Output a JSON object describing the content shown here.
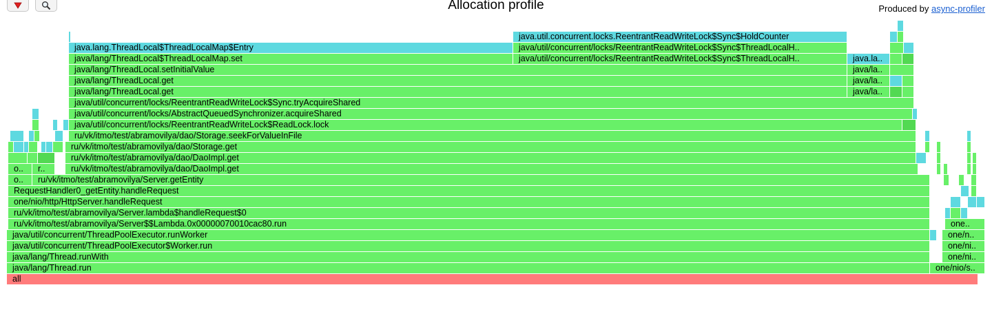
{
  "toolbar": {
    "reverse_icon": "red-triangle-down-icon",
    "search_icon": "magnifier-icon"
  },
  "title": "Allocation profile",
  "produced_by": {
    "prefix": "Produced by",
    "link_text": "async-profiler"
  },
  "colors": {
    "root": "#ff7b7b",
    "java": "#68f068",
    "java_dark": "#52d952",
    "alloc": "#5ed9e0"
  },
  "chart_data": {
    "type": "flamegraph",
    "title": "Allocation profile",
    "rows": [
      [
        [
          "all",
          0,
          1440,
          "root"
        ]
      ],
      [
        [
          "java/lang/Thread.run",
          10,
          1350,
          "java"
        ],
        [
          "one/nio/s..",
          1350,
          1430,
          "java"
        ]
      ],
      [
        [
          "java/lang/Thread.runWith",
          10,
          1350,
          "java"
        ],
        [
          "one/ni..",
          1368,
          1430,
          "java"
        ]
      ],
      [
        [
          "java/util/concurrent/ThreadPoolExecutor$Worker.run",
          10,
          1350,
          "java"
        ],
        [
          "one/ni..",
          1368,
          1430,
          "java"
        ]
      ],
      [
        [
          "java/util/concurrent/ThreadPoolExecutor.runWorker",
          10,
          1350,
          "java"
        ],
        [
          "",
          1350,
          1360,
          "alloc"
        ],
        [
          "one/n..",
          1368,
          1430,
          "java"
        ]
      ],
      [
        [
          "ru/vk/itmo/test/abramovilya/Server$$Lambda.0x00000070010cac80.run",
          12,
          1350,
          "java"
        ],
        [
          "one..",
          1372,
          1430,
          "java"
        ]
      ],
      [
        [
          "ru/vk/itmo/test/abramovilya/Server.lambda$handleRequest$0",
          12,
          1350,
          "java"
        ],
        [
          "",
          1372,
          1380,
          "alloc"
        ],
        [
          "",
          1380,
          1395,
          "java"
        ],
        [
          "",
          1395,
          1405,
          "alloc"
        ]
      ],
      [
        [
          "one/nio/http/HttpServer.handleRequest",
          12,
          1350,
          "java"
        ],
        [
          "",
          1380,
          1395,
          "alloc"
        ],
        [
          "",
          1405,
          1418,
          "alloc"
        ],
        [
          "",
          1418,
          1430,
          "alloc"
        ]
      ],
      [
        [
          "RequestHandler0_getEntity.handleRequest",
          12,
          1350,
          "java"
        ],
        [
          "",
          1395,
          1407,
          "alloc"
        ],
        [
          "",
          1410,
          1418,
          "java"
        ]
      ],
      [
        [
          "o..",
          12,
          47,
          "java"
        ],
        [
          "ru/vk/itmo/test/abramovilya/Server.getEntity",
          47,
          1350,
          "java"
        ],
        [
          "",
          1370,
          1378,
          "java"
        ],
        [
          "",
          1392,
          1400,
          "java"
        ],
        [
          "",
          1410,
          1418,
          "java"
        ]
      ],
      [
        [
          "o..",
          12,
          47,
          "java"
        ],
        [
          "r..",
          47,
          80,
          "java"
        ],
        [
          "ru/vk/itmo/test/abramovilya/dao/DaoImpl.get",
          95,
          1333,
          "java"
        ],
        [
          "",
          1360,
          1366,
          "java"
        ],
        [
          "",
          1370,
          1376,
          "java"
        ],
        [
          "",
          1404,
          1410,
          "java"
        ],
        [
          "",
          1412,
          1418,
          "java"
        ]
      ],
      [
        [
          "",
          12,
          40,
          "java"
        ],
        [
          "",
          40,
          55,
          "java"
        ],
        [
          "",
          55,
          80,
          "java_dark"
        ],
        [
          "ru/vk/itmo/test/abramovilya/dao/DaoImpl.get",
          95,
          1330,
          "java"
        ],
        [
          "",
          1330,
          1345,
          "alloc"
        ],
        [
          "",
          1360,
          1366,
          "java"
        ],
        [
          "",
          1404,
          1410,
          "java"
        ],
        [
          "",
          1412,
          1418,
          "java"
        ]
      ],
      [
        [
          "",
          12,
          20,
          "java"
        ],
        [
          "",
          20,
          35,
          "alloc"
        ],
        [
          "",
          35,
          42,
          "alloc"
        ],
        [
          "",
          42,
          55,
          "java"
        ],
        [
          "",
          60,
          67,
          "alloc"
        ],
        [
          "",
          67,
          77,
          "alloc"
        ],
        [
          "",
          77,
          92,
          "java"
        ],
        [
          "ru/vk/itmo/test/abramovilya/dao/Storage.get",
          95,
          1330,
          "java"
        ],
        [
          "",
          1343,
          1350,
          "java"
        ],
        [
          "",
          1360,
          1366,
          "java"
        ],
        [
          "",
          1404,
          1410,
          "java"
        ]
      ],
      [
        [
          "",
          15,
          35,
          "alloc"
        ],
        [
          "",
          42,
          50,
          "alloc"
        ],
        [
          "",
          50,
          58,
          "java"
        ],
        [
          "",
          80,
          92,
          "alloc"
        ],
        [
          "ru/vk/itmo/test/abramovilya/dao/Storage.seekForValueInFile",
          100,
          1330,
          "java"
        ],
        [
          "",
          1343,
          1350,
          "alloc"
        ],
        [
          "",
          1404,
          1410,
          "alloc"
        ]
      ],
      [
        [
          "",
          47,
          57,
          "java"
        ],
        [
          "",
          77,
          84,
          "alloc"
        ],
        [
          "",
          92,
          100,
          "alloc"
        ],
        [
          "java/util/concurrent/locks/ReentrantReadWriteLock$ReadLock.lock",
          100,
          1310,
          "java"
        ],
        [
          "",
          1310,
          1330,
          "java_dark"
        ]
      ],
      [
        [
          "",
          47,
          57,
          "alloc"
        ],
        [
          "java/util/concurrent/locks/AbstractQueuedSynchronizer.acquireShared",
          100,
          1325,
          "java"
        ],
        [
          "",
          1325,
          1332,
          "alloc"
        ]
      ],
      [
        [
          "java/util/concurrent/locks/ReentrantReadWriteLock$Sync.tryAcquireShared",
          100,
          1327,
          "java"
        ]
      ],
      [
        [
          "java/lang/ThreadLocal.get",
          100,
          1230,
          "java"
        ],
        [
          "java/la..",
          1230,
          1292,
          "java"
        ],
        [
          "",
          1292,
          1310,
          "java_dark"
        ],
        [
          "",
          1310,
          1327,
          "java"
        ]
      ],
      [
        [
          "java/lang/ThreadLocal.get",
          100,
          1230,
          "java"
        ],
        [
          "java/la..",
          1230,
          1292,
          "java"
        ],
        [
          "",
          1292,
          1310,
          "alloc"
        ],
        [
          "",
          1310,
          1327,
          "java"
        ]
      ],
      [
        [
          "java/lang/ThreadLocal.setInitialValue",
          100,
          1230,
          "java"
        ],
        [
          "java/la..",
          1230,
          1292,
          "java"
        ],
        [
          "",
          1292,
          1327,
          "java"
        ]
      ],
      [
        [
          "java/lang/ThreadLocal$ThreadLocalMap.set",
          100,
          745,
          "java"
        ],
        [
          "java/util/concurrent/locks/ReentrantReadWriteLock$Sync$ThreadLocalH..",
          745,
          1230,
          "java"
        ],
        [
          "java.la..",
          1230,
          1292,
          "alloc"
        ],
        [
          "",
          1292,
          1310,
          "java"
        ],
        [
          "",
          1310,
          1327,
          "java_dark"
        ]
      ],
      [
        [
          "java.lang.ThreadLocal$ThreadLocalMap$Entry",
          100,
          745,
          "alloc"
        ],
        [
          "java/util/concurrent/locks/ReentrantReadWriteLock$Sync$ThreadLocalH..",
          745,
          1230,
          "java"
        ],
        [
          "",
          1292,
          1312,
          "java"
        ],
        [
          "",
          1312,
          1327,
          "alloc"
        ]
      ],
      [
        [
          "",
          100,
          103,
          "alloc"
        ],
        [
          "java.util.concurrent.locks.ReentrantReadWriteLock$Sync$HoldCounter",
          745,
          1230,
          "alloc"
        ],
        [
          "",
          1292,
          1303,
          "alloc"
        ],
        [
          "",
          1303,
          1312,
          "java"
        ]
      ],
      [
        [
          "",
          1303,
          1312,
          "alloc"
        ]
      ]
    ]
  }
}
